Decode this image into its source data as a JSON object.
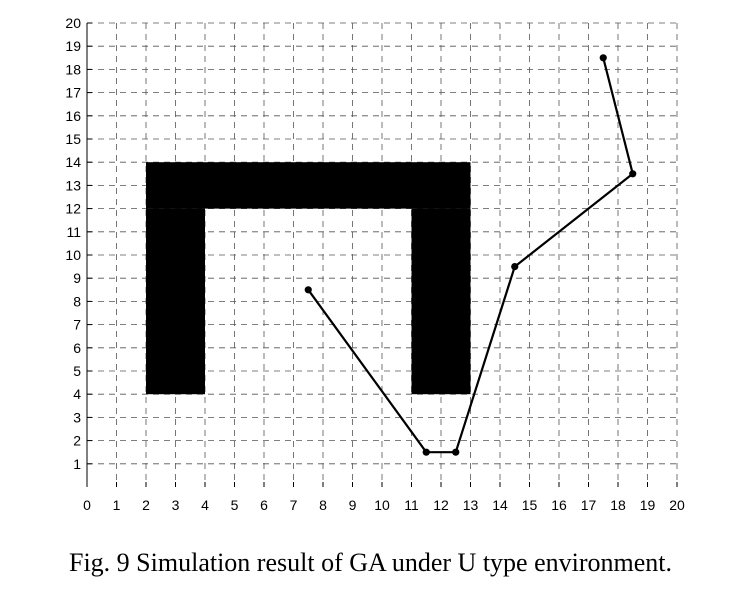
{
  "caption": "Fig. 9 Simulation result of GA under U type environment.",
  "chart_data": {
    "type": "line",
    "title": "",
    "xlabel": "",
    "ylabel": "",
    "xlim": [
      0,
      20
    ],
    "ylim": [
      0,
      20
    ],
    "x_ticks": [
      0,
      1,
      2,
      3,
      4,
      5,
      6,
      7,
      8,
      9,
      10,
      11,
      12,
      13,
      14,
      15,
      16,
      17,
      18,
      19,
      20
    ],
    "y_ticks": [
      1,
      2,
      3,
      4,
      5,
      6,
      7,
      8,
      9,
      10,
      11,
      12,
      13,
      14,
      15,
      16,
      17,
      18,
      19,
      20
    ],
    "grid": true,
    "grid_style": "dashed",
    "legend": "none",
    "obstacles": [
      {
        "shape": "rect",
        "x": [
          2,
          13
        ],
        "y": [
          12,
          14
        ]
      },
      {
        "shape": "rect",
        "x": [
          2,
          4
        ],
        "y": [
          4,
          12
        ]
      },
      {
        "shape": "rect",
        "x": [
          11,
          13
        ],
        "y": [
          4,
          12
        ]
      }
    ],
    "series": [
      {
        "x": [
          7.5,
          11.5,
          12.5,
          14.5,
          18.5,
          17.5
        ],
        "y": [
          8.5,
          1.5,
          1.5,
          9.5,
          13.5,
          18.5
        ]
      }
    ],
    "colors": {
      "path": "#000000",
      "obstacle": "#000000",
      "grid": "#555555",
      "axis": "#000000"
    }
  }
}
